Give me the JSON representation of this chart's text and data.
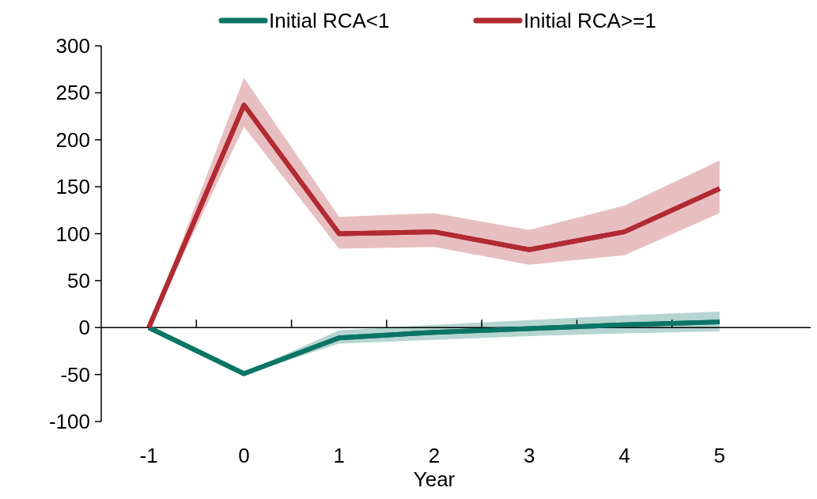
{
  "chart_data": {
    "type": "line",
    "xlabel": "Year",
    "categories": [
      "-1",
      "0",
      "1",
      "2",
      "3",
      "4",
      "5"
    ],
    "series": [
      {
        "name": "Initial RCA<1",
        "color": "#0b7566",
        "values": [
          0,
          -49,
          -11,
          -5,
          -1,
          3,
          6
        ],
        "lower": [
          0,
          -50,
          -17,
          -13,
          -9,
          -6,
          -4
        ],
        "upper": [
          0,
          -48,
          -3,
          3,
          8,
          13,
          17
        ]
      },
      {
        "name": "Initial RCA>=1",
        "color": "#b22a33",
        "values": [
          0,
          237,
          100,
          102,
          83,
          102,
          148
        ],
        "lower": [
          0,
          214,
          84,
          86,
          67,
          77,
          122
        ],
        "upper": [
          0,
          266,
          118,
          122,
          104,
          130,
          178
        ]
      }
    ],
    "ylim": [
      -100,
      300
    ],
    "yticks": [
      -100,
      -50,
      0,
      50,
      100,
      150,
      200,
      250,
      300
    ],
    "legend": "top",
    "line_style": "solid",
    "marker": "none"
  }
}
